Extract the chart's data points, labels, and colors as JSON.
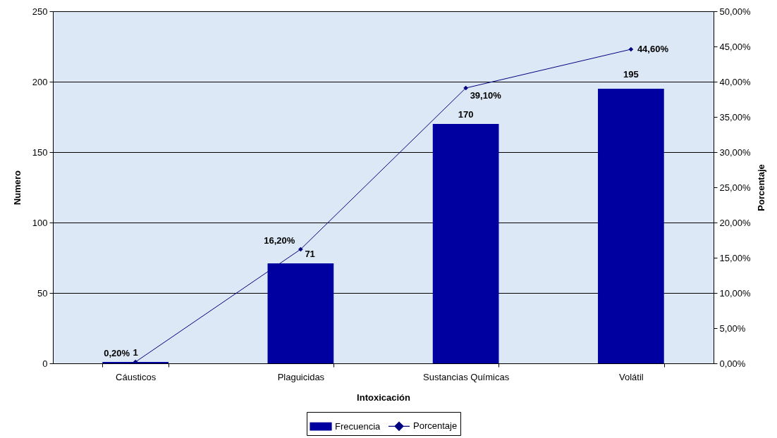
{
  "chart_data": {
    "type": "bar",
    "categories": [
      "Cáusticos",
      "Plaguicidas",
      "Sustancias Químicas",
      "Volátil"
    ],
    "xlabel": "Intoxicación",
    "ylabel": "Numero",
    "y2label": "Porcentaje",
    "series": [
      {
        "name": "Frecuencia",
        "color": "#0000a0",
        "values": [
          1,
          71,
          170,
          195
        ],
        "value_labels": [
          "1",
          "71",
          "170",
          "195"
        ]
      },
      {
        "name": "Porcentaje",
        "type": "line",
        "axis": "y2",
        "color": "#000080",
        "values": [
          0.2,
          16.2,
          39.1,
          44.6
        ],
        "value_labels": [
          "0,20%",
          "16,20%",
          "39,10%",
          "44,60%"
        ]
      }
    ],
    "ylim": [
      0,
      250
    ],
    "yticks": [
      0,
      50,
      100,
      150,
      200,
      250
    ],
    "y2lim": [
      0,
      50
    ],
    "y2ticks": [
      {
        "value": 0,
        "label": "0,00%"
      },
      {
        "value": 5,
        "label": "5,00%"
      },
      {
        "value": 10,
        "label": "10,00%"
      },
      {
        "value": 15,
        "label": "15,00%"
      },
      {
        "value": 20,
        "label": "20,00%"
      },
      {
        "value": 25,
        "label": "25,00%"
      },
      {
        "value": 30,
        "label": "30,00%"
      },
      {
        "value": 35,
        "label": "35,00%"
      },
      {
        "value": 40,
        "label": "40,00%"
      },
      {
        "value": 45,
        "label": "45,00%"
      },
      {
        "value": 50,
        "label": "50,00%"
      }
    ],
    "grid": "y",
    "legend": "bottom",
    "marker": "diamond"
  }
}
